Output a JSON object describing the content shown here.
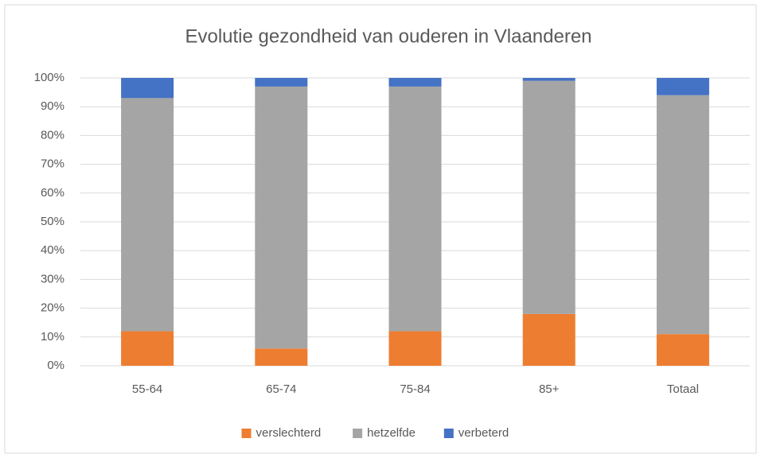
{
  "chart_data": {
    "type": "stacked_bar",
    "title": "Evolutie gezondheid van ouderen in Vlaanderen",
    "categories": [
      "55-64",
      "65-74",
      "75-84",
      "85+",
      "Totaal"
    ],
    "series": [
      {
        "name": "verslechterd",
        "color": "#ed7d31",
        "values": [
          12,
          6,
          12,
          18,
          11
        ]
      },
      {
        "name": "hetzelfde",
        "color": "#a5a5a5",
        "values": [
          81,
          91,
          85,
          81,
          83
        ]
      },
      {
        "name": "verbeterd",
        "color": "#4472c4",
        "values": [
          7,
          3,
          3,
          1,
          6
        ]
      }
    ],
    "ylim": [
      0,
      100
    ],
    "yticks": [
      {
        "value": 0,
        "label": "0%"
      },
      {
        "value": 10,
        "label": "10%"
      },
      {
        "value": 20,
        "label": "20%"
      },
      {
        "value": 30,
        "label": "30%"
      },
      {
        "value": 40,
        "label": "40%"
      },
      {
        "value": 50,
        "label": "50%"
      },
      {
        "value": 60,
        "label": "60%"
      },
      {
        "value": 70,
        "label": "70%"
      },
      {
        "value": 80,
        "label": "80%"
      },
      {
        "value": 90,
        "label": "90%"
      },
      {
        "value": 100,
        "label": "100%"
      }
    ],
    "grid": true,
    "legend": "bottom"
  }
}
